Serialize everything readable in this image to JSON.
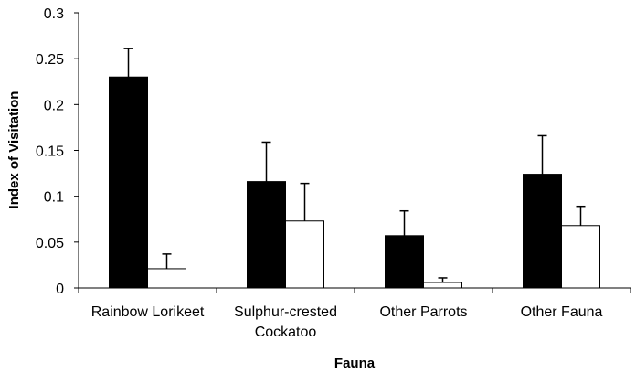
{
  "chart_data": {
    "type": "bar",
    "xlabel": "Fauna",
    "ylabel": "Index of Visitation",
    "ylim": [
      0,
      0.3
    ],
    "yticks": [
      0,
      0.05,
      0.1,
      0.15,
      0.2,
      0.25,
      0.3
    ],
    "ytick_labels": [
      "0",
      "0.05",
      "0.1",
      "0.15",
      "0.2",
      "0.25",
      "0.3"
    ],
    "categories": [
      [
        "Rainbow Lorikeet"
      ],
      [
        "Sulphur-crested",
        "Cockatoo"
      ],
      [
        "Other Parrots"
      ],
      [
        "Other Fauna"
      ]
    ],
    "series": [
      {
        "values": [
          0.23,
          0.116,
          0.057,
          0.124
        ],
        "errors": [
          0.031,
          0.043,
          0.027,
          0.042
        ],
        "color": "#000000"
      },
      {
        "values": [
          0.021,
          0.073,
          0.006,
          0.068
        ],
        "errors": [
          0.016,
          0.041,
          0.005,
          0.021
        ],
        "color": "#ffffff"
      }
    ],
    "grid": false,
    "legend": "none"
  }
}
